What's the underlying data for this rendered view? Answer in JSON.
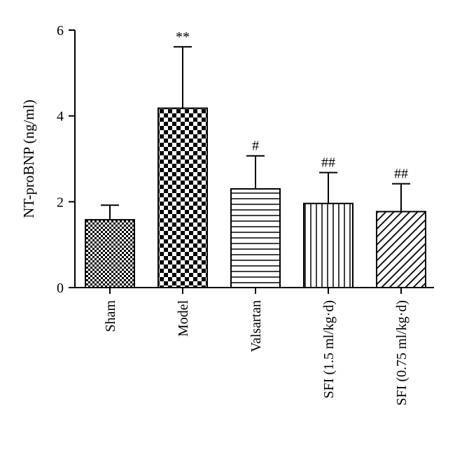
{
  "chart_data": {
    "type": "bar",
    "title": "",
    "xlabel": "",
    "ylabel": "NT-proBNP (ng/ml)",
    "ylim": [
      0,
      6
    ],
    "yticks": [
      0,
      2,
      4,
      6
    ],
    "grid": false,
    "categories": [
      "Sham",
      "Model",
      "Valsartan",
      "SFI (1.5 ml/kg·d)",
      "SFI (0.75 ml/kg·d)"
    ],
    "values": [
      1.58,
      4.18,
      2.3,
      1.96,
      1.77
    ],
    "error_upper": [
      0.34,
      1.43,
      0.77,
      0.72,
      0.65
    ],
    "significance": [
      "",
      "**",
      "#",
      "##",
      "##"
    ],
    "patterns": [
      "small-checker",
      "large-checker",
      "horizontal-lines",
      "vertical-lines",
      "diagonal-lines"
    ]
  }
}
